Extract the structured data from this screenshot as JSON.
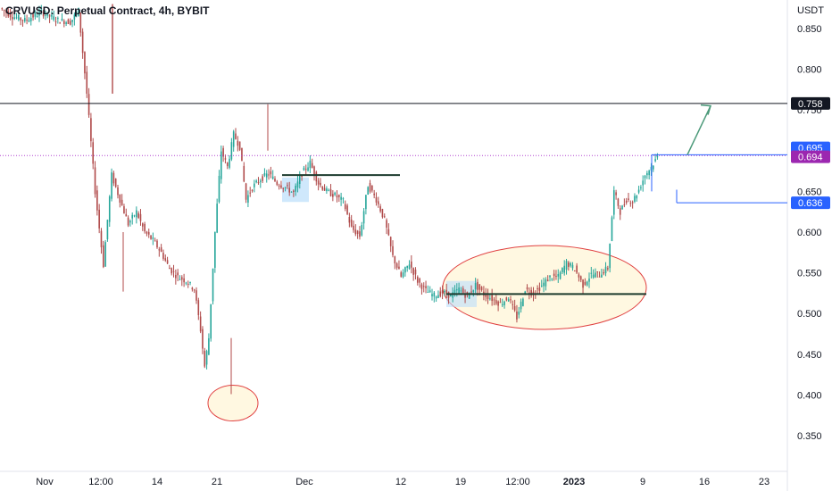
{
  "header": {
    "title": "CRVUSD: Perpetual Contract, 4h, BYBIT"
  },
  "chart_data": {
    "type": "candlestick",
    "currency_label": "USDT",
    "y_ticks": [
      0.85,
      0.8,
      0.75,
      0.7,
      0.65,
      0.6,
      0.55,
      0.5,
      0.45,
      0.4,
      0.35
    ],
    "y_tick_labels": [
      "0.850",
      "0.800",
      "0.750",
      "",
      "0.650",
      "0.600",
      "0.550",
      "0.500",
      "0.450",
      "0.400",
      "0.350"
    ],
    "ylim": [
      0.315,
      0.885
    ],
    "x_ticks": [
      {
        "label": "Nov",
        "bold": false
      },
      {
        "label": "12:00",
        "bold": false
      },
      {
        "label": "14",
        "bold": false
      },
      {
        "label": "21",
        "bold": false
      },
      {
        "label": "Dec",
        "bold": false
      },
      {
        "label": "12",
        "bold": false
      },
      {
        "label": "19",
        "bold": false
      },
      {
        "label": "12:00",
        "bold": false
      },
      {
        "label": "2023",
        "bold": true
      },
      {
        "label": "9",
        "bold": false
      },
      {
        "label": "16",
        "bold": false
      },
      {
        "label": "23",
        "bold": false
      }
    ],
    "price_path": [
      [
        0,
        0.875
      ],
      [
        6,
        0.865
      ],
      [
        12,
        0.86
      ],
      [
        20,
        0.87
      ],
      [
        28,
        0.86
      ],
      [
        34,
        0.858
      ],
      [
        38,
        0.872
      ],
      [
        42,
        0.77
      ],
      [
        46,
        0.65
      ],
      [
        50,
        0.56
      ],
      [
        54,
        0.67
      ],
      [
        58,
        0.64
      ],
      [
        62,
        0.61
      ],
      [
        66,
        0.625
      ],
      [
        70,
        0.6
      ],
      [
        74,
        0.59
      ],
      [
        78,
        0.575
      ],
      [
        82,
        0.555
      ],
      [
        86,
        0.545
      ],
      [
        90,
        0.54
      ],
      [
        94,
        0.53
      ],
      [
        97,
        0.48
      ],
      [
        99,
        0.435
      ],
      [
        101,
        0.47
      ],
      [
        104,
        0.6
      ],
      [
        107,
        0.7
      ],
      [
        110,
        0.68
      ],
      [
        113,
        0.72
      ],
      [
        116,
        0.705
      ],
      [
        119,
        0.64
      ],
      [
        122,
        0.655
      ],
      [
        126,
        0.665
      ],
      [
        130,
        0.672
      ],
      [
        134,
        0.66
      ],
      [
        138,
        0.655
      ],
      [
        142,
        0.648
      ],
      [
        146,
        0.672
      ],
      [
        150,
        0.685
      ],
      [
        154,
        0.66
      ],
      [
        158,
        0.65
      ],
      [
        162,
        0.645
      ],
      [
        166,
        0.638
      ],
      [
        170,
        0.605
      ],
      [
        174,
        0.595
      ],
      [
        178,
        0.658
      ],
      [
        182,
        0.64
      ],
      [
        186,
        0.615
      ],
      [
        190,
        0.57
      ],
      [
        194,
        0.545
      ],
      [
        198,
        0.562
      ],
      [
        202,
        0.54
      ],
      [
        206,
        0.528
      ],
      [
        210,
        0.522
      ],
      [
        214,
        0.526
      ],
      [
        218,
        0.522
      ],
      [
        222,
        0.53
      ],
      [
        226,
        0.521
      ],
      [
        230,
        0.535
      ],
      [
        234,
        0.524
      ],
      [
        238,
        0.518
      ],
      [
        242,
        0.512
      ],
      [
        246,
        0.52
      ],
      [
        250,
        0.495
      ],
      [
        254,
        0.53
      ],
      [
        258,
        0.525
      ],
      [
        262,
        0.534
      ],
      [
        266,
        0.545
      ],
      [
        270,
        0.545
      ],
      [
        274,
        0.562
      ],
      [
        278,
        0.555
      ],
      [
        282,
        0.535
      ],
      [
        286,
        0.548
      ],
      [
        290,
        0.548
      ],
      [
        294,
        0.556
      ],
      [
        297,
        0.65
      ],
      [
        300,
        0.625
      ],
      [
        303,
        0.64
      ],
      [
        306,
        0.638
      ],
      [
        309,
        0.652
      ],
      [
        312,
        0.67
      ],
      [
        315,
        0.68
      ],
      [
        318,
        0.692
      ]
    ],
    "path_x_max": 380,
    "annotations": {
      "resistance": {
        "price": 0.758,
        "label": "0.758"
      },
      "current_price_a": {
        "price": 0.695,
        "label": "0.695"
      },
      "current_price_b": {
        "price": 0.694,
        "label": "0.694"
      },
      "stop": {
        "price": 0.636,
        "label": "0.636"
      },
      "range_high": {
        "price": 0.67
      },
      "range_low": {
        "price": 0.524
      },
      "bottom_wick": {
        "price": 0.401
      }
    },
    "colors": {
      "up": "#26a69a",
      "down": "#b04a4a",
      "resistance_line": "#131722",
      "current_line": "#b040d0",
      "blue_tag": "#2962ff",
      "purple_tag": "#9c27b0",
      "dark_tag": "#131722",
      "ellipse": "#e04040",
      "ellipse_fill": "#fff8e1",
      "arrow": "#4c9a7a",
      "level_line": "#1d3b2e"
    }
  }
}
